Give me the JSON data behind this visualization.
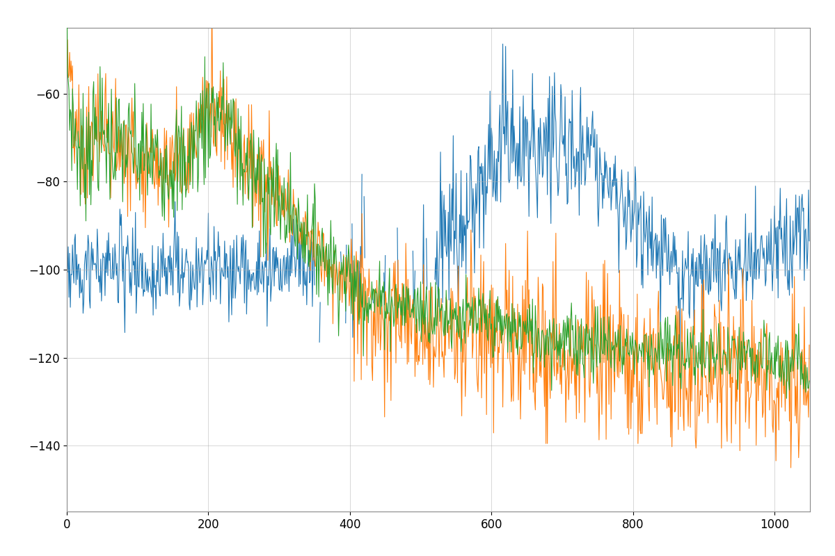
{
  "n": 1050,
  "background_color": "#ffffff",
  "grid_color": "#b0b0b0",
  "line_color_blue": "#1f77b4",
  "line_color_orange": "#ff7f0e",
  "line_color_green": "#2ca02c",
  "xlim": [
    0,
    1050
  ],
  "ylim": [
    -155,
    -45
  ],
  "yticks": [
    -60,
    -80,
    -100,
    -120,
    -140
  ],
  "xticks": [
    0,
    200,
    400,
    600,
    800,
    1000
  ],
  "linewidth": 0.8,
  "figsize": [
    12.0,
    8.0
  ],
  "dpi": 100
}
